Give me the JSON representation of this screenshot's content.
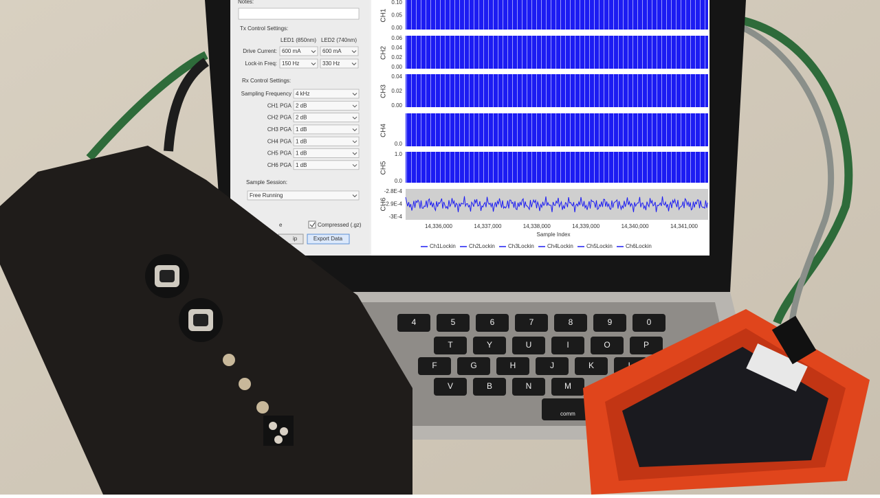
{
  "form": {
    "notes_label": "Notes:",
    "tx_title": "Tx Control Settings:",
    "led_headers": [
      "LED1 (850nm)",
      "LED2 (740nm)"
    ],
    "tx_rows": [
      {
        "label": "Drive Current:",
        "values": [
          "600 mA",
          "600 mA"
        ]
      },
      {
        "label": "Lock-in Freq:",
        "values": [
          "150 Hz",
          "330 Hz"
        ]
      }
    ],
    "rx_title": "Rx Control Settings:",
    "rx_rows": [
      {
        "label": "Sampling Frequency",
        "value": "4 kHz"
      },
      {
        "label": "CH1 PGA",
        "value": "2 dB"
      },
      {
        "label": "CH2 PGA",
        "value": "2 dB"
      },
      {
        "label": "CH3 PGA",
        "value": "1 dB"
      },
      {
        "label": "CH4 PGA",
        "value": "1 dB"
      },
      {
        "label": "CH5 PGA",
        "value": "1 dB"
      },
      {
        "label": "CH6 PGA",
        "value": "1 dB"
      }
    ],
    "session_label": "Sample Session:",
    "session_value": "Free Running",
    "partial_left": "e",
    "compressed": "Compressed (.gz)",
    "partial_button": "ip",
    "export": "Export Data"
  },
  "plot": {
    "panels": [
      {
        "label": "CH1",
        "yticks": [
          "0.10",
          "0.05",
          "0.00"
        ]
      },
      {
        "label": "CH2",
        "yticks": [
          "0.06",
          "0.04",
          "0.02",
          "0.00"
        ]
      },
      {
        "label": "CH3",
        "yticks": [
          "0.04",
          "0.02",
          "0.00"
        ]
      },
      {
        "label": "CH4",
        "yticks": [
          "0.0"
        ]
      },
      {
        "label": "CH5",
        "yticks": [
          "1.0",
          "0.0"
        ]
      },
      {
        "label": "CH6",
        "yticks": [
          "-2.8E-4",
          "-2.9E-4",
          "-3E-4"
        ]
      }
    ],
    "xticks": [
      "14,336,000",
      "14,337,000",
      "14,338,000",
      "14,339,000",
      "14,340,000",
      "14,341,000"
    ],
    "xlabel": "Sample Index",
    "legend": [
      "Ch1Lockin",
      "Ch2Lockin",
      "Ch3Lockin",
      "Ch4Lockin",
      "Ch5Lockin",
      "Ch6Lockin"
    ]
  },
  "keyboard": {
    "rows": [
      [
        "4",
        "5",
        "6",
        "7",
        "8",
        "9",
        "0"
      ],
      [
        "T",
        "Y",
        "U",
        "I",
        "O",
        "P"
      ],
      [
        "F",
        "G",
        "H",
        "J",
        "K",
        "L"
      ],
      [
        "V",
        "B",
        "N",
        "M"
      ]
    ],
    "command": "comm"
  }
}
